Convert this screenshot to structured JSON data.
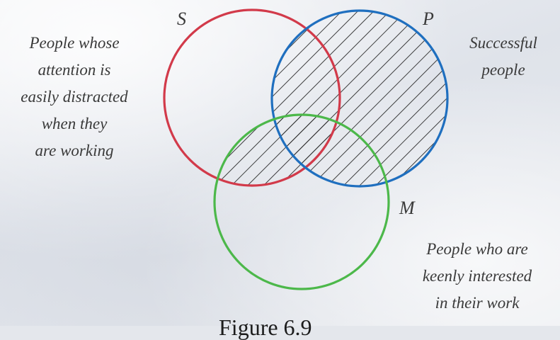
{
  "figure": {
    "caption": "Figure 6.9"
  },
  "sets": [
    {
      "letter": "S",
      "color": "#d23a4a",
      "description_lines": [
        "People whose",
        "attention is",
        "easily distracted",
        "when they",
        "are working"
      ]
    },
    {
      "letter": "P",
      "color": "#1f6fbf",
      "description_lines": [
        "Successful",
        "people"
      ]
    },
    {
      "letter": "M",
      "color": "#4cb84a",
      "description_lines": [
        "People who are",
        "keenly interested",
        "in their work"
      ]
    }
  ],
  "shading": {
    "hatch_color": "#2a2a2a"
  }
}
